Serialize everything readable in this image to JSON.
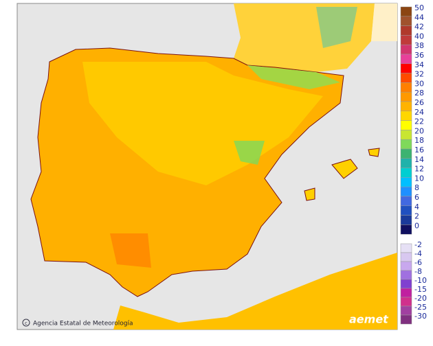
{
  "credit": "Agencia Estatal de Meteorología",
  "logo": "aemet",
  "legend": {
    "positive": [
      {
        "value": 50,
        "color": "#8b4513"
      },
      {
        "value": 44,
        "color": "#a0522d"
      },
      {
        "value": 42,
        "color": "#b0392b"
      },
      {
        "value": 40,
        "color": "#c03a3a"
      },
      {
        "value": 38,
        "color": "#d2356e"
      },
      {
        "value": 36,
        "color": "#e8409a"
      },
      {
        "value": 34,
        "color": "#ff0000"
      },
      {
        "value": 32,
        "color": "#ff4a00"
      },
      {
        "value": 30,
        "color": "#ff7f00"
      },
      {
        "value": 28,
        "color": "#ff9900"
      },
      {
        "value": 26,
        "color": "#ffb300"
      },
      {
        "value": 24,
        "color": "#ffd700"
      },
      {
        "value": 22,
        "color": "#ffff00"
      },
      {
        "value": 20,
        "color": "#c8e632"
      },
      {
        "value": 18,
        "color": "#7fd95a"
      },
      {
        "value": 16,
        "color": "#3cb371"
      },
      {
        "value": 14,
        "color": "#20b2aa"
      },
      {
        "value": 12,
        "color": "#00ced1"
      },
      {
        "value": 10,
        "color": "#00bfff"
      },
      {
        "value": 8,
        "color": "#1e90ff"
      },
      {
        "value": 6,
        "color": "#4169e1"
      },
      {
        "value": 4,
        "color": "#2050c0"
      },
      {
        "value": 2,
        "color": "#1a3a9a"
      },
      {
        "value": 0,
        "color": "#101060"
      }
    ],
    "negative": [
      {
        "value": -2,
        "color": "#e6e0f5"
      },
      {
        "value": -4,
        "color": "#d8c8f0"
      },
      {
        "value": -6,
        "color": "#c8a8ee"
      },
      {
        "value": -8,
        "color": "#a070e0"
      },
      {
        "value": -10,
        "color": "#8040d0"
      },
      {
        "value": -15,
        "color": "#c020a0"
      },
      {
        "value": -20,
        "color": "#d0308c"
      },
      {
        "value": -25,
        "color": "#a040a0"
      },
      {
        "value": -30,
        "color": "#803080"
      }
    ]
  }
}
